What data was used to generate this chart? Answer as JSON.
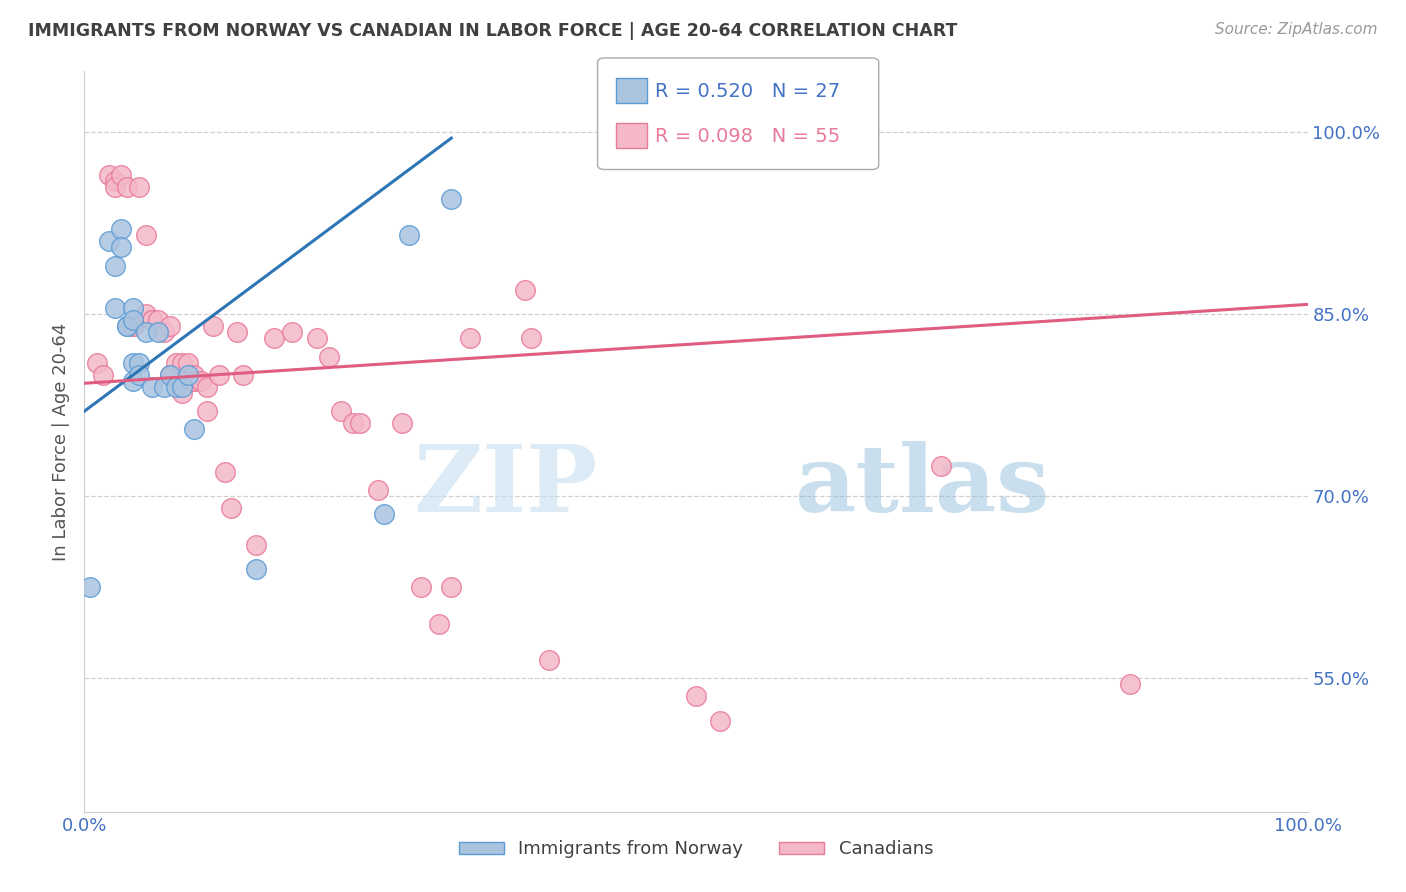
{
  "title": "IMMIGRANTS FROM NORWAY VS CANADIAN IN LABOR FORCE | AGE 20-64 CORRELATION CHART",
  "source": "Source: ZipAtlas.com",
  "ylabel": "In Labor Force | Age 20-64",
  "xlim": [
    0.0,
    1.0
  ],
  "ylim": [
    0.44,
    1.05
  ],
  "ytick_positions": [
    0.55,
    0.7,
    0.85,
    1.0
  ],
  "ytick_labels": [
    "55.0%",
    "70.0%",
    "85.0%",
    "100.0%"
  ],
  "xtick_positions": [
    0.0,
    0.2,
    0.4,
    0.6,
    0.8,
    1.0
  ],
  "xtick_labels": [
    "0.0%",
    "",
    "",
    "",
    "",
    "100.0%"
  ],
  "legend_labels": [
    "Immigrants from Norway",
    "Canadians"
  ],
  "norway_color": "#aac4e0",
  "canada_color": "#f4b8c8",
  "norway_edge_color": "#5b9bd5",
  "canada_edge_color": "#e87a9a",
  "norway_line_color": "#2e75b6",
  "canada_line_color": "#e05c80",
  "norway_R": 0.52,
  "norway_N": 27,
  "canada_R": 0.098,
  "canada_N": 55,
  "norway_line_x": [
    0.0,
    0.3
  ],
  "norway_line_y": [
    0.77,
    0.995
  ],
  "canada_line_x": [
    0.0,
    1.0
  ],
  "canada_line_y": [
    0.793,
    0.858
  ],
  "norway_scatter_x": [
    0.005,
    0.02,
    0.025,
    0.025,
    0.03,
    0.03,
    0.035,
    0.035,
    0.04,
    0.04,
    0.04,
    0.04,
    0.045,
    0.045,
    0.05,
    0.055,
    0.06,
    0.065,
    0.07,
    0.075,
    0.08,
    0.085,
    0.09,
    0.14,
    0.245,
    0.265,
    0.3
  ],
  "norway_scatter_y": [
    0.625,
    0.91,
    0.89,
    0.855,
    0.92,
    0.905,
    0.84,
    0.84,
    0.855,
    0.845,
    0.81,
    0.795,
    0.81,
    0.8,
    0.835,
    0.79,
    0.835,
    0.79,
    0.8,
    0.79,
    0.79,
    0.8,
    0.755,
    0.64,
    0.685,
    0.915,
    0.945
  ],
  "canada_scatter_x": [
    0.01,
    0.015,
    0.02,
    0.025,
    0.025,
    0.03,
    0.035,
    0.04,
    0.04,
    0.045,
    0.05,
    0.05,
    0.055,
    0.055,
    0.06,
    0.065,
    0.07,
    0.07,
    0.075,
    0.08,
    0.08,
    0.085,
    0.09,
    0.09,
    0.09,
    0.095,
    0.1,
    0.1,
    0.105,
    0.11,
    0.115,
    0.12,
    0.125,
    0.13,
    0.14,
    0.155,
    0.17,
    0.19,
    0.2,
    0.21,
    0.22,
    0.225,
    0.24,
    0.26,
    0.275,
    0.29,
    0.3,
    0.315,
    0.36,
    0.365,
    0.38,
    0.5,
    0.52,
    0.7,
    0.855
  ],
  "canada_scatter_y": [
    0.81,
    0.8,
    0.965,
    0.96,
    0.955,
    0.965,
    0.955,
    0.84,
    0.84,
    0.955,
    0.915,
    0.85,
    0.845,
    0.845,
    0.845,
    0.835,
    0.84,
    0.8,
    0.81,
    0.81,
    0.785,
    0.81,
    0.8,
    0.795,
    0.795,
    0.795,
    0.79,
    0.77,
    0.84,
    0.8,
    0.72,
    0.69,
    0.835,
    0.8,
    0.66,
    0.83,
    0.835,
    0.83,
    0.815,
    0.77,
    0.76,
    0.76,
    0.705,
    0.76,
    0.625,
    0.595,
    0.625,
    0.83,
    0.87,
    0.83,
    0.565,
    0.535,
    0.515,
    0.725,
    0.545
  ],
  "watermark_zip": "ZIP",
  "watermark_atlas": "atlas",
  "background_color": "#ffffff",
  "grid_color": "#d0d0d0",
  "title_color": "#404040",
  "axis_label_color": "#555555",
  "tick_label_color": "#4472c4",
  "source_color": "#999999"
}
